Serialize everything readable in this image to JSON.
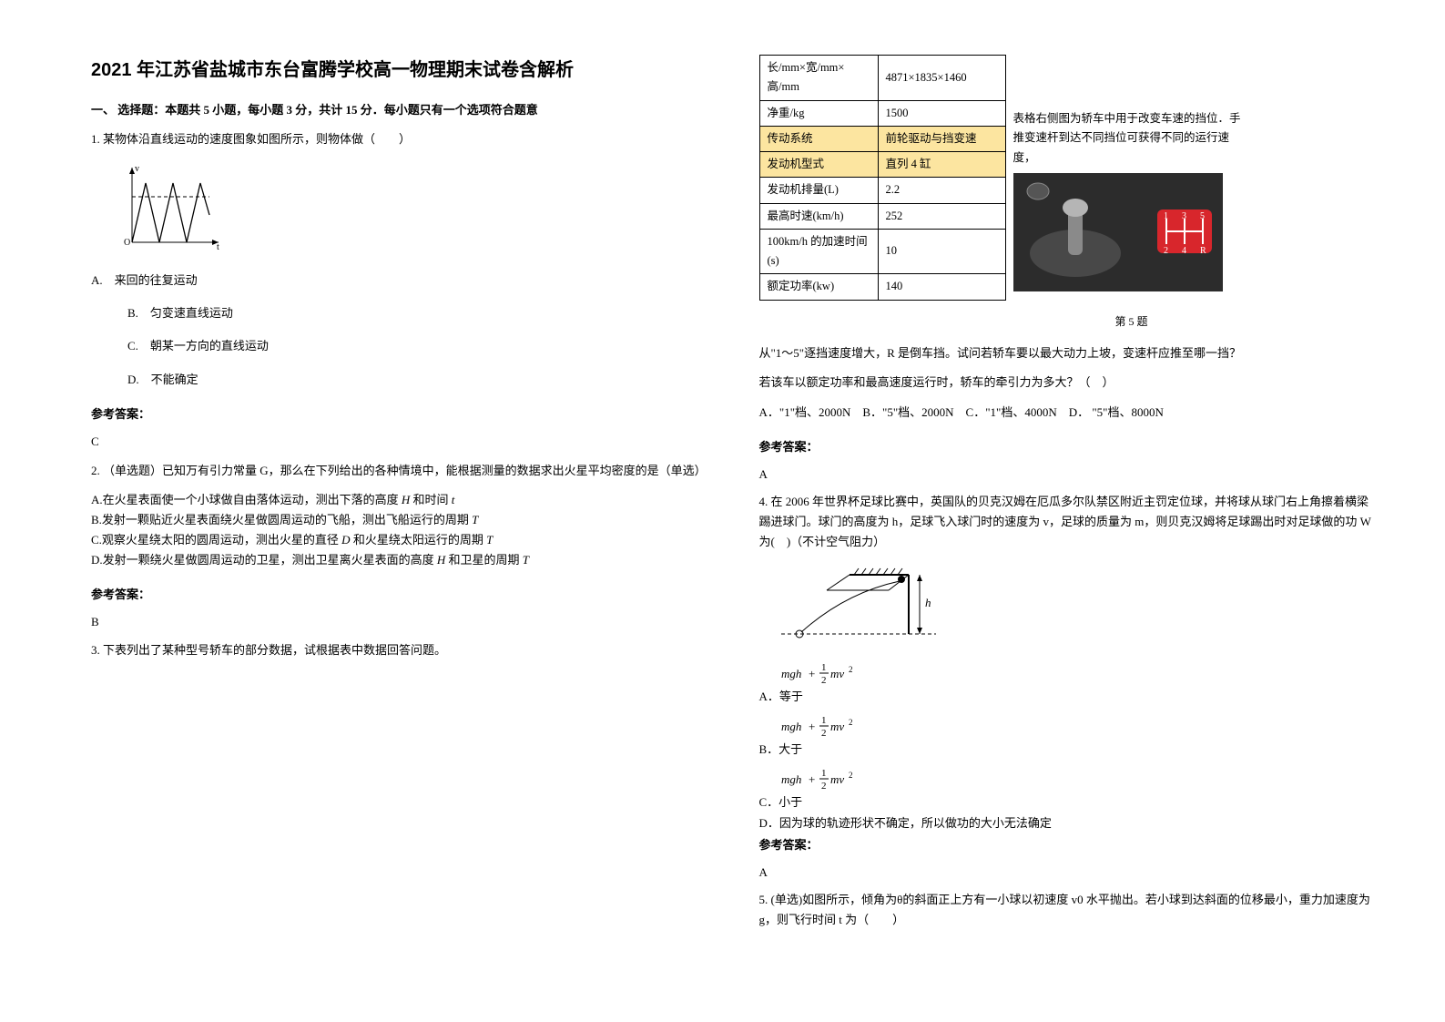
{
  "title": "2021 年江苏省盐城市东台富腾学校高一物理期末试卷含解析",
  "section1_head": "一、 选择题：本题共 5 小题，每小题 3 分，共计 15 分．每小题只有一个选项符合题意",
  "q1": {
    "stem": "1. 某物体沿直线运动的速度图象如图所示，则物体做（　　）",
    "optA": "A.　来回的往复运动",
    "optB": "B.　匀变速直线运动",
    "optC": "C.　朝某一方向的直线运动",
    "optD": "D.　不能确定",
    "ans_label": "参考答案：",
    "ans": "C",
    "graph": {
      "width": 120,
      "height": 100,
      "axis_color": "#000",
      "line_color": "#000",
      "dash": "4,3",
      "x_label": "t",
      "y_label": "v"
    }
  },
  "q2": {
    "stem": "2. （单选题）已知万有引力常量 G，那么在下列给出的各种情境中，能根据测量的数据求出火星平均密度的是（单选）",
    "optA_pre": "A.在火星表面使一个小球做自由落体运动，测出下落的高度",
    "optA_mid1": "H",
    "optA_mid2": "和时间",
    "optA_mid3": "t",
    "optB_pre": "B.发射一颗贴近火星表面绕火星做圆周运动的飞船，测出飞船运行的周期",
    "optB_T": "T",
    "optC_pre": "C.观察火星绕太阳的圆周运动，测出火星的直径",
    "optC_D": "D",
    "optC_mid": "和火星绕太阳运行的周期",
    "optC_T": "T",
    "optD_pre": "D.发射一颗绕火星做圆周运动的卫星，测出卫星离火星表面的高度",
    "optD_H": "H",
    "optD_mid": "和卫星的周期",
    "optD_T": "T",
    "ans_label": "参考答案：",
    "ans": "B"
  },
  "q3": {
    "stem": "3. 下表列出了某种型号轿车的部分数据，试根据表中数据回答问题。"
  },
  "car_table": {
    "rows": [
      [
        "长/mm×宽/mm×高/mm",
        "4871×1835×1460"
      ],
      [
        "净重/kg",
        "1500"
      ],
      [
        "传动系统",
        "前轮驱动与挡变速"
      ],
      [
        "发动机型式",
        "直列 4 缸"
      ],
      [
        "发动机排量(L)",
        "2.2"
      ],
      [
        "最高时速(km/h)",
        "252"
      ],
      [
        "100km/h 的加速时间(s)",
        "10"
      ],
      [
        "额定功率(kw)",
        "140"
      ]
    ],
    "hl_rows": [
      2,
      3
    ],
    "side_text": "表格右侧图为轿车中用于改变车速的挡位．手推变速杆到达不同挡位可获得不同的运行速度，",
    "caption": "第 5 题",
    "gear": {
      "bg": "#2c2c2c",
      "badge": "#d8262c",
      "stick": "#7a7a7a",
      "labels": [
        "1",
        "3",
        "5",
        "2",
        "4",
        "R"
      ],
      "label_color": "#fff"
    }
  },
  "q3b": {
    "line1": "从\"1～5\"逐挡速度增大，R 是倒车挡。试问若轿车要以最大动力上坡，变速杆应推至哪一挡？",
    "line2": "若该车以额定功率和最高速度运行时，轿车的牵引力为多大？（　）",
    "opts": "A．\"1\"档、2000N　B．\"5\"档、2000N　C．\"1\"档、4000N　D． \"5\"档、8000N",
    "ans_label": "参考答案：",
    "ans": "A"
  },
  "q4": {
    "stem": "4. 在 2006 年世界杯足球比赛中，英国队的贝克汉姆在厄瓜多尔队禁区附近主罚定位球，并将球从球门右上角擦着横梁踢进球门。球门的高度为 h，足球飞入球门时的速度为 v，足球的质量为 m，则贝克汉姆将足球踢出时对足球做的功 W 为(　)（不计空气阻力）",
    "diagram": {
      "goal_color": "#444",
      "ball_color": "#000",
      "h_label": "h"
    },
    "optA_pre": "A．等于",
    "optB_pre": "B．大于",
    "optC_pre": "C．小于",
    "optD": "D．因为球的轨迹形状不确定，所以做功的大小无法确定",
    "formula": "mgh + ½mv²",
    "ans_label": "参考答案：",
    "ans": "A"
  },
  "q5": {
    "stem": "5. (单选)如图所示，倾角为θ的斜面正上方有一小球以初速度 v0 水平抛出。若小球到达斜面的位移最小，重力加速度为 g，则飞行时间 t 为（　　）"
  }
}
